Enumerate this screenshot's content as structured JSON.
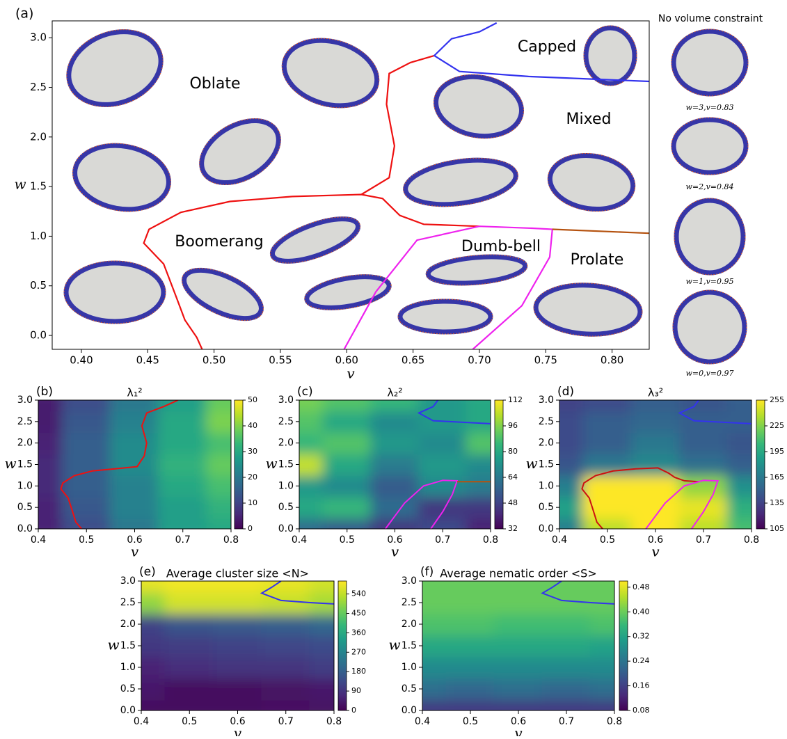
{
  "chart_data": [
    {
      "type": "phase-diagram",
      "label": "(a)",
      "xlabel": "v",
      "ylabel": "w",
      "xlim": [
        0.378,
        0.828
      ],
      "ylim": [
        -0.14,
        3.17
      ],
      "xticks": [
        {
          "value": 0.4,
          "label": "0.40"
        },
        0.45,
        {
          "value": 0.5,
          "label": "0.50"
        },
        0.55,
        {
          "value": 0.6,
          "label": "0.60"
        },
        0.65,
        {
          "value": 0.7,
          "label": "0.70"
        },
        0.75,
        {
          "value": 0.8,
          "label": "0.80"
        }
      ],
      "yticks": [
        {
          "value": 0,
          "label": "0.0"
        },
        0.5,
        {
          "value": 1,
          "label": "1.0"
        },
        1.5,
        {
          "value": 2,
          "label": "2.0"
        },
        2.5,
        {
          "value": 3,
          "label": "3.0"
        }
      ],
      "annotations": [
        "Oblate",
        "Capped",
        "Mixed",
        "Boomerang",
        "Dumb-bell",
        "Prolate"
      ],
      "side_title": "No volume constraint",
      "side_labels": [
        "w=3,v=0.83",
        "w=2,v=0.84",
        "w=1,v=0.95",
        "w=0,v=0.97"
      ],
      "lines": [
        {
          "color": "#ee1111",
          "x": [
            0.491,
            0.487,
            0.478,
            0.472,
            0.462,
            0.447,
            0.451,
            0.475,
            0.512,
            0.559,
            0.611,
            0.627,
            0.64,
            0.658,
            0.7
          ],
          "y": [
            -0.14,
            -0.02,
            0.155,
            0.37,
            0.72,
            0.93,
            1.07,
            1.24,
            1.35,
            1.4,
            1.42,
            1.38,
            1.21,
            1.12,
            1.1
          ]
        },
        {
          "color": "#ee1111",
          "x": [
            0.611,
            0.632,
            0.636,
            0.63,
            0.632,
            0.648,
            0.666
          ],
          "y": [
            1.42,
            1.59,
            1.91,
            2.33,
            2.64,
            2.75,
            2.82
          ]
        },
        {
          "color": "#3333ee",
          "x": [
            0.713,
            0.7,
            0.679,
            0.666,
            0.685,
            0.737,
            0.828
          ],
          "y": [
            3.15,
            3.06,
            2.99,
            2.82,
            2.66,
            2.61,
            2.56
          ]
        },
        {
          "color": "#ee22ee",
          "x": [
            0.598,
            0.622,
            0.653,
            0.7,
            0.74,
            0.755,
            0.753,
            0.732,
            0.695
          ],
          "y": [
            -0.14,
            0.44,
            0.96,
            1.1,
            1.08,
            1.07,
            0.79,
            0.3,
            -0.14
          ]
        },
        {
          "color": "#b5520f",
          "x": [
            0.755,
            0.828
          ],
          "y": [
            1.07,
            1.03
          ]
        }
      ]
    },
    {
      "type": "contour",
      "label": "(b)",
      "title": "λ₁²",
      "xlabel": "v",
      "ylabel": "w",
      "xlim": [
        0.4,
        0.8
      ],
      "ylim": [
        0,
        3
      ],
      "xticks": [
        0.4,
        0.5,
        0.6,
        0.7,
        0.8
      ],
      "yticks": [
        {
          "value": 0,
          "label": "0.0"
        },
        0.5,
        {
          "value": 1,
          "label": "1.0"
        },
        1.5,
        {
          "value": 2,
          "label": "2.0"
        },
        2.5,
        {
          "value": 3,
          "label": "3.0"
        }
      ],
      "x": [
        0.4,
        0.5,
        0.6,
        0.7,
        0.8
      ],
      "y": [
        0,
        0.5,
        1,
        1.5,
        2,
        2.5,
        3
      ],
      "z": [
        [
          5,
          12,
          20,
          28,
          30
        ],
        [
          5,
          14,
          22,
          28,
          32
        ],
        [
          6,
          15,
          22,
          30,
          35
        ],
        [
          6,
          15,
          24,
          32,
          38
        ],
        [
          5,
          15,
          24,
          30,
          35
        ],
        [
          4,
          14,
          22,
          30,
          40
        ],
        [
          4,
          12,
          20,
          28,
          38
        ]
      ],
      "colormap": "viridis",
      "clim": [
        0,
        50
      ],
      "cticks": [
        0,
        10,
        20,
        30,
        40,
        50
      ],
      "lines": [
        {
          "color": "#ee1111",
          "x": [
            0.49,
            0.478,
            0.472,
            0.462,
            0.447,
            0.451,
            0.475,
            0.512,
            0.559,
            0.605,
            0.62,
            0.625,
            0.615,
            0.625,
            0.66,
            0.69
          ],
          "y": [
            0,
            0.155,
            0.37,
            0.72,
            0.93,
            1.07,
            1.24,
            1.35,
            1.4,
            1.45,
            1.7,
            2.0,
            2.4,
            2.7,
            2.85,
            3.0
          ]
        }
      ]
    },
    {
      "type": "contour",
      "label": "(c)",
      "title": "λ₂²",
      "xlabel": "v",
      "ylabel": "w",
      "xlim": [
        0.4,
        0.8
      ],
      "ylim": [
        0,
        3
      ],
      "xticks": [
        0.4,
        0.5,
        0.6,
        0.7,
        0.8
      ],
      "yticks": [
        {
          "value": 0,
          "label": "0.0"
        },
        0.5,
        {
          "value": 1,
          "label": "1.0"
        },
        1.5,
        {
          "value": 2,
          "label": "2.0"
        },
        2.5,
        {
          "value": 3,
          "label": "3.0"
        }
      ],
      "x": [
        0.4,
        0.5,
        0.6,
        0.7,
        0.8
      ],
      "y": [
        0,
        0.5,
        1,
        1.5,
        2,
        2.5,
        3
      ],
      "z": [
        [
          60,
          55,
          45,
          50,
          40
        ],
        [
          80,
          85,
          60,
          45,
          45
        ],
        [
          75,
          70,
          55,
          70,
          65
        ],
        [
          105,
          80,
          65,
          75,
          70
        ],
        [
          85,
          90,
          75,
          70,
          90
        ],
        [
          90,
          80,
          70,
          75,
          80
        ],
        [
          95,
          90,
          85,
          75,
          80
        ]
      ],
      "colormap": "viridis",
      "clim": [
        32,
        112
      ],
      "cticks": [
        32,
        48,
        64,
        80,
        96,
        112
      ],
      "lines": [
        {
          "color": "#3333ee",
          "x": [
            0.69,
            0.68,
            0.65,
            0.68,
            0.75,
            0.8
          ],
          "y": [
            3.0,
            2.85,
            2.7,
            2.52,
            2.48,
            2.45
          ]
        },
        {
          "color": "#ee22ee",
          "x": [
            0.58,
            0.62,
            0.66,
            0.7,
            0.73,
            0.72,
            0.7,
            0.675
          ],
          "y": [
            0,
            0.6,
            1.0,
            1.13,
            1.12,
            0.8,
            0.4,
            0
          ]
        },
        {
          "color": "#b5520f",
          "x": [
            0.73,
            0.8
          ],
          "y": [
            1.1,
            1.1
          ]
        }
      ]
    },
    {
      "type": "contour",
      "label": "(d)",
      "title": "λ₃²",
      "xlabel": "v",
      "ylabel": "w",
      "xlim": [
        0.4,
        0.8
      ],
      "ylim": [
        0,
        3
      ],
      "xticks": [
        0.4,
        0.5,
        0.6,
        0.7,
        0.8
      ],
      "yticks": [
        {
          "value": 0,
          "label": "0.0"
        },
        0.5,
        {
          "value": 1,
          "label": "1.0"
        },
        1.5,
        {
          "value": 2,
          "label": "2.0"
        },
        2.5,
        {
          "value": 3,
          "label": "3.0"
        }
      ],
      "x": [
        0.4,
        0.5,
        0.6,
        0.7,
        0.8
      ],
      "y": [
        0,
        0.5,
        1,
        1.5,
        2,
        2.5,
        3
      ],
      "z": [
        [
          170,
          240,
          255,
          240,
          210
        ],
        [
          190,
          255,
          255,
          250,
          200
        ],
        [
          170,
          255,
          255,
          230,
          180
        ],
        [
          145,
          165,
          175,
          160,
          150
        ],
        [
          140,
          150,
          165,
          150,
          145
        ],
        [
          140,
          150,
          155,
          150,
          150
        ],
        [
          135,
          140,
          150,
          145,
          150
        ]
      ],
      "colormap": "viridis",
      "clim": [
        105,
        255
      ],
      "cticks": [
        105,
        135,
        165,
        195,
        225,
        255
      ],
      "lines": [
        {
          "color": "#cc1111",
          "x": [
            0.49,
            0.478,
            0.472,
            0.462,
            0.447,
            0.451,
            0.475,
            0.512,
            0.559,
            0.605,
            0.627,
            0.64,
            0.66,
            0.69
          ],
          "y": [
            0,
            0.155,
            0.37,
            0.72,
            0.93,
            1.07,
            1.24,
            1.35,
            1.4,
            1.42,
            1.3,
            1.2,
            1.12,
            1.1
          ]
        },
        {
          "color": "#3333ee",
          "x": [
            0.69,
            0.68,
            0.65,
            0.68,
            0.75,
            0.8
          ],
          "y": [
            3.0,
            2.85,
            2.7,
            2.52,
            2.48,
            2.45
          ]
        },
        {
          "color": "#ee22ee",
          "x": [
            0.58,
            0.62,
            0.66,
            0.7,
            0.73,
            0.72,
            0.7,
            0.675
          ],
          "y": [
            0,
            0.6,
            1.0,
            1.13,
            1.12,
            0.8,
            0.4,
            0
          ]
        }
      ]
    },
    {
      "type": "contour",
      "label": "(e)",
      "title": "Average cluster size <N>",
      "xlabel": "v",
      "ylabel": "w",
      "xlim": [
        0.4,
        0.8
      ],
      "ylim": [
        0,
        3
      ],
      "xticks": [
        0.4,
        0.5,
        0.6,
        0.7,
        0.8
      ],
      "yticks": [
        {
          "value": 0,
          "label": "0.0"
        },
        0.5,
        {
          "value": 1,
          "label": "1.0"
        },
        1.5,
        {
          "value": 2,
          "label": "2.0"
        },
        2.5,
        {
          "value": 3,
          "label": "3.0"
        }
      ],
      "x": [
        0.4,
        0.5,
        0.6,
        0.7,
        0.8
      ],
      "y": [
        0,
        0.5,
        1,
        1.5,
        2,
        2.5,
        3
      ],
      "z": [
        [
          20,
          20,
          20,
          25,
          30
        ],
        [
          40,
          20,
          20,
          30,
          40
        ],
        [
          60,
          80,
          90,
          90,
          110
        ],
        [
          100,
          110,
          120,
          130,
          140
        ],
        [
          120,
          160,
          170,
          180,
          200
        ],
        [
          500,
          560,
          560,
          550,
          520
        ],
        [
          580,
          590,
          590,
          580,
          560
        ]
      ],
      "colormap": "viridis",
      "clim": [
        0,
        600
      ],
      "cticks": [
        0,
        90,
        180,
        270,
        360,
        450,
        540
      ],
      "lines": [
        {
          "color": "#3333ee",
          "x": [
            0.69,
            0.67,
            0.65,
            0.69,
            0.75,
            0.8
          ],
          "y": [
            3.0,
            2.85,
            2.72,
            2.55,
            2.5,
            2.47
          ]
        }
      ]
    },
    {
      "type": "contour",
      "label": "(f)",
      "title": "Average nematic order <S>",
      "xlabel": "v",
      "ylabel": "w",
      "xlim": [
        0.4,
        0.8
      ],
      "ylim": [
        0,
        3
      ],
      "xticks": [
        0.4,
        0.5,
        0.6,
        0.7,
        0.8
      ],
      "yticks": [
        {
          "value": 0,
          "label": "0.0"
        },
        0.5,
        {
          "value": 1,
          "label": "1.0"
        },
        1.5,
        {
          "value": 2,
          "label": "2.0"
        },
        2.5,
        {
          "value": 3,
          "label": "3.0"
        }
      ],
      "x": [
        0.4,
        0.5,
        0.6,
        0.7,
        0.8
      ],
      "y": [
        0,
        0.5,
        1,
        1.5,
        2,
        2.5,
        3
      ],
      "z": [
        [
          0.15,
          0.15,
          0.15,
          0.15,
          0.15
        ],
        [
          0.23,
          0.22,
          0.23,
          0.22,
          0.23
        ],
        [
          0.28,
          0.28,
          0.28,
          0.28,
          0.28
        ],
        [
          0.33,
          0.33,
          0.33,
          0.33,
          0.32
        ],
        [
          0.38,
          0.38,
          0.37,
          0.37,
          0.38
        ],
        [
          0.4,
          0.4,
          0.4,
          0.4,
          0.4
        ],
        [
          0.4,
          0.4,
          0.4,
          0.4,
          0.4
        ]
      ],
      "colormap": "viridis",
      "clim": [
        0.08,
        0.5
      ],
      "cticks": [
        0.08,
        0.16,
        0.24,
        0.32,
        {
          "value": 0.4,
          "label": "0.40"
        },
        0.48
      ],
      "lines": [
        {
          "color": "#3333ee",
          "x": [
            0.69,
            0.67,
            0.65,
            0.69,
            0.75,
            0.8
          ],
          "y": [
            3.0,
            2.85,
            2.72,
            2.55,
            2.5,
            2.47
          ]
        }
      ]
    }
  ]
}
